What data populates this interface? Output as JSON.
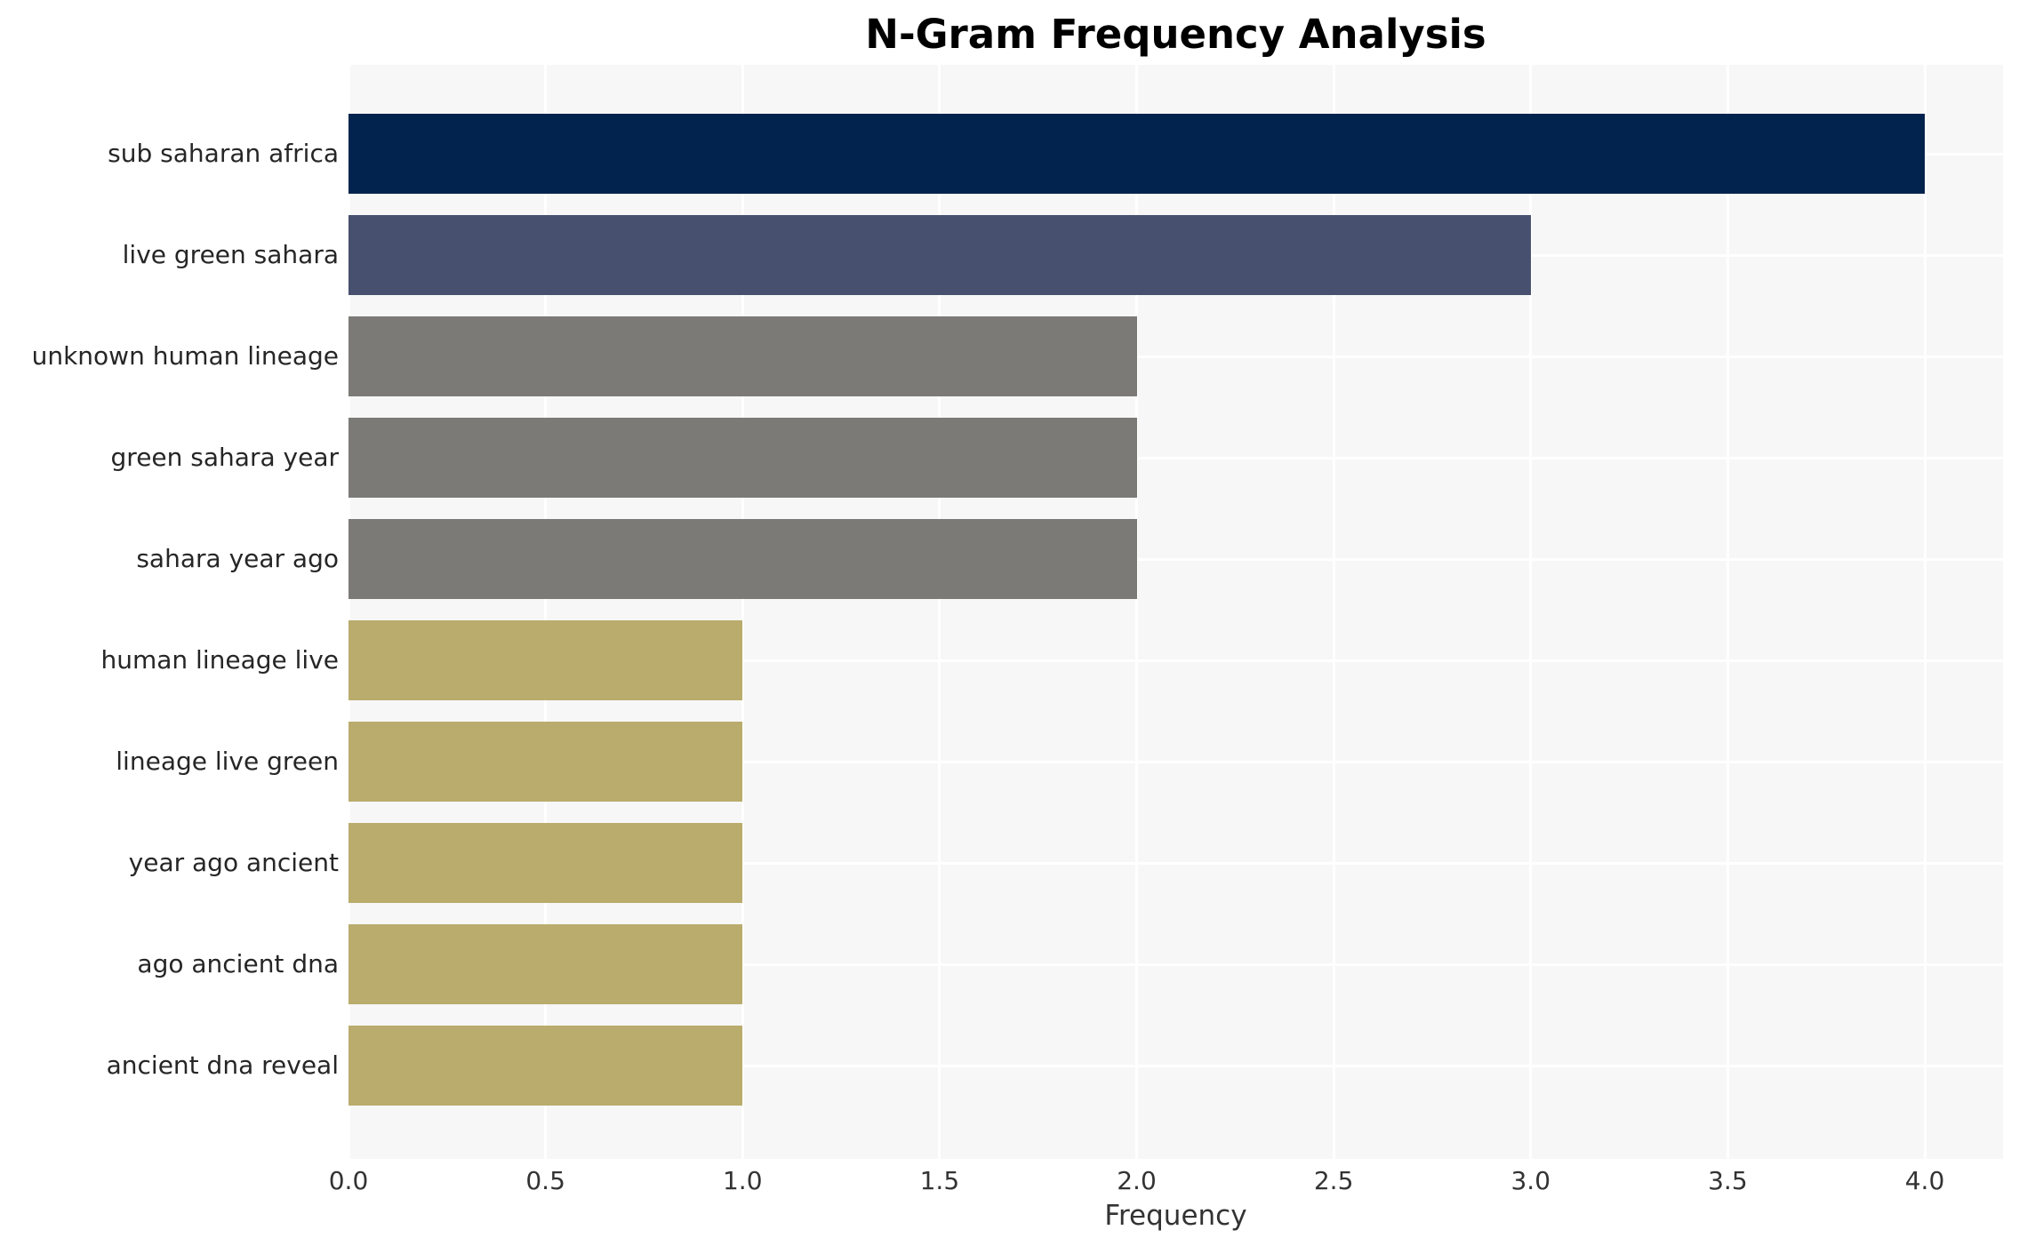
{
  "chart_data": {
    "type": "bar",
    "orientation": "horizontal",
    "title": "N-Gram Frequency Analysis",
    "xlabel": "Frequency",
    "ylabel": "",
    "categories": [
      "sub saharan africa",
      "live green sahara",
      "unknown human lineage",
      "green sahara year",
      "sahara year ago",
      "human lineage live",
      "lineage live green",
      "year ago ancient",
      "ago ancient dna",
      "ancient dna reveal"
    ],
    "values": [
      4,
      3,
      2,
      2,
      2,
      1,
      1,
      1,
      1,
      1
    ],
    "bar_colors": [
      "#02234d",
      "#47506e",
      "#7b7a76",
      "#7b7a76",
      "#7b7a76",
      "#b9ac6c",
      "#b9ac6c",
      "#b9ac6c",
      "#b9ac6c",
      "#b9ac6c"
    ],
    "x_ticks": [
      "0.0",
      "0.5",
      "1.0",
      "1.5",
      "2.0",
      "2.5",
      "3.0",
      "3.5",
      "4.0"
    ],
    "xlim": [
      0,
      4.2
    ],
    "grid": true,
    "legend": false,
    "colors": {
      "plot_background": "#f7f7f7",
      "page_background": "#ffffff",
      "gridline": "#ffffff",
      "title_text": "#000000",
      "label_text": "#262626",
      "tick_text": "#333333"
    }
  }
}
